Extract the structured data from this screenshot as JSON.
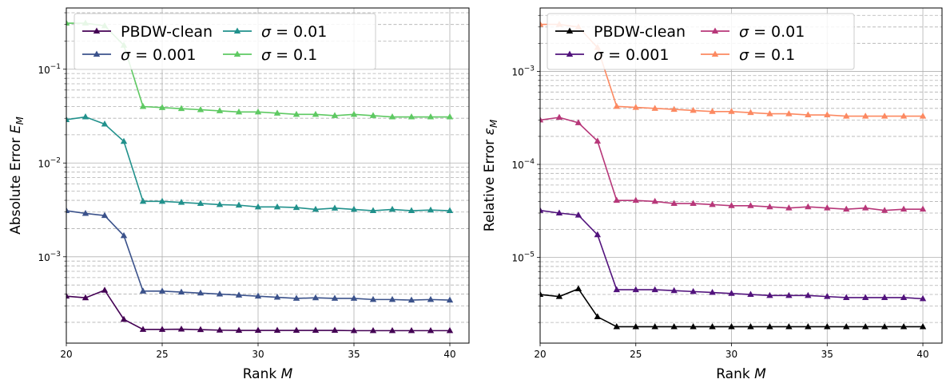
{
  "chart_data": [
    {
      "type": "line",
      "xlabel": "Rank",
      "xlabel_math": "M",
      "ylabel": "Absolute Error",
      "ylabel_math": "E",
      "ylabel_sub": "M",
      "yscale": "log",
      "xlim": [
        20,
        41
      ],
      "ylim": [
        0.00012,
        0.45
      ],
      "xticks": [
        20,
        25,
        30,
        35,
        40
      ],
      "yticks": [
        {
          "value": 0.001,
          "base": "10",
          "exp": "−3"
        },
        {
          "value": 0.01,
          "base": "10",
          "exp": "−2"
        },
        {
          "value": 0.1,
          "base": "10",
          "exp": "−1"
        }
      ],
      "grid": true,
      "legend": "top, 2 columns",
      "x": [
        20,
        21,
        22,
        23,
        24,
        25,
        26,
        27,
        28,
        29,
        30,
        31,
        32,
        33,
        34,
        35,
        36,
        37,
        38,
        39,
        40
      ],
      "series": [
        {
          "name": "PBDW-clean",
          "color": "#440154",
          "values": [
            0.00038,
            0.000365,
            0.00044,
            0.000215,
            0.000168,
            0.000168,
            0.000169,
            0.000167,
            0.000165,
            0.000164,
            0.000164,
            0.000164,
            0.000164,
            0.000164,
            0.000164,
            0.000163,
            0.000163,
            0.000163,
            0.000163,
            0.000163,
            0.000163
          ]
        },
        {
          "name": "σ = 0.001",
          "name_math": "σ",
          "name_value": "= 0.001",
          "color": "#3b528b",
          "values": [
            0.0031,
            0.0029,
            0.00275,
            0.00168,
            0.00043,
            0.00043,
            0.00042,
            0.00041,
            0.0004,
            0.00039,
            0.00038,
            0.00037,
            0.00036,
            0.000365,
            0.00036,
            0.00036,
            0.00035,
            0.00035,
            0.000345,
            0.00035,
            0.000345
          ]
        },
        {
          "name": "σ = 0.01",
          "name_math": "σ",
          "name_value": "= 0.01",
          "color": "#21918c",
          "values": [
            0.029,
            0.031,
            0.026,
            0.017,
            0.0039,
            0.0039,
            0.0038,
            0.0037,
            0.0036,
            0.00355,
            0.0034,
            0.0034,
            0.00335,
            0.0032,
            0.0033,
            0.0032,
            0.0031,
            0.0032,
            0.0031,
            0.00315,
            0.0031
          ]
        },
        {
          "name": "σ = 0.1",
          "name_math": "σ",
          "name_value": "= 0.1",
          "color": "#5ec962",
          "values": [
            0.31,
            0.31,
            0.29,
            0.18,
            0.04,
            0.039,
            0.038,
            0.037,
            0.036,
            0.035,
            0.035,
            0.034,
            0.033,
            0.033,
            0.032,
            0.033,
            0.032,
            0.031,
            0.031,
            0.031,
            0.031
          ]
        }
      ]
    },
    {
      "type": "line",
      "xlabel": "Rank",
      "xlabel_math": "M",
      "ylabel": "Relative Error",
      "ylabel_math": "ε",
      "ylabel_sub": "M",
      "yscale": "log",
      "xlim": [
        20,
        41
      ],
      "ylim": [
        1.2e-06,
        0.0048
      ],
      "xticks": [
        20,
        25,
        30,
        35,
        40
      ],
      "yticks": [
        {
          "value": 1e-05,
          "base": "10",
          "exp": "−5"
        },
        {
          "value": 0.0001,
          "base": "10",
          "exp": "−4"
        },
        {
          "value": 0.001,
          "base": "10",
          "exp": "−3"
        }
      ],
      "grid": true,
      "legend": "top, 2 columns",
      "x": [
        20,
        21,
        22,
        23,
        24,
        25,
        26,
        27,
        28,
        29,
        30,
        31,
        32,
        33,
        34,
        35,
        36,
        37,
        38,
        39,
        40
      ],
      "series": [
        {
          "name": "PBDW-clean",
          "color": "#000000",
          "values": [
            4e-06,
            3.8e-06,
            4.6e-06,
            2.3e-06,
            1.8e-06,
            1.8e-06,
            1.8e-06,
            1.8e-06,
            1.8e-06,
            1.8e-06,
            1.8e-06,
            1.8e-06,
            1.8e-06,
            1.8e-06,
            1.8e-06,
            1.8e-06,
            1.8e-06,
            1.8e-06,
            1.8e-06,
            1.8e-06,
            1.8e-06
          ]
        },
        {
          "name": "σ = 0.001",
          "name_math": "σ",
          "name_value": "= 0.001",
          "color": "#51127c",
          "values": [
            3.2e-05,
            3e-05,
            2.85e-05,
            1.75e-05,
            4.5e-06,
            4.5e-06,
            4.5e-06,
            4.4e-06,
            4.3e-06,
            4.2e-06,
            4.1e-06,
            4e-06,
            3.9e-06,
            3.9e-06,
            3.9e-06,
            3.8e-06,
            3.7e-06,
            3.7e-06,
            3.7e-06,
            3.7e-06,
            3.6e-06
          ]
        },
        {
          "name": "σ = 0.01",
          "name_math": "σ",
          "name_value": "= 0.01",
          "color": "#b73779",
          "values": [
            0.0003,
            0.00032,
            0.00028,
            0.000178,
            4.1e-05,
            4.1e-05,
            4e-05,
            3.8e-05,
            3.8e-05,
            3.7e-05,
            3.6e-05,
            3.6e-05,
            3.5e-05,
            3.4e-05,
            3.5e-05,
            3.4e-05,
            3.3e-05,
            3.4e-05,
            3.2e-05,
            3.3e-05,
            3.3e-05
          ]
        },
        {
          "name": "σ = 0.1",
          "name_math": "σ",
          "name_value": "= 0.1",
          "color": "#fc8961",
          "values": [
            0.0032,
            0.0032,
            0.003,
            0.0018,
            0.00042,
            0.00041,
            0.0004,
            0.00039,
            0.00038,
            0.00037,
            0.00037,
            0.00036,
            0.00035,
            0.00035,
            0.00034,
            0.00034,
            0.00033,
            0.00033,
            0.00033,
            0.00033,
            0.00033
          ]
        }
      ]
    }
  ]
}
